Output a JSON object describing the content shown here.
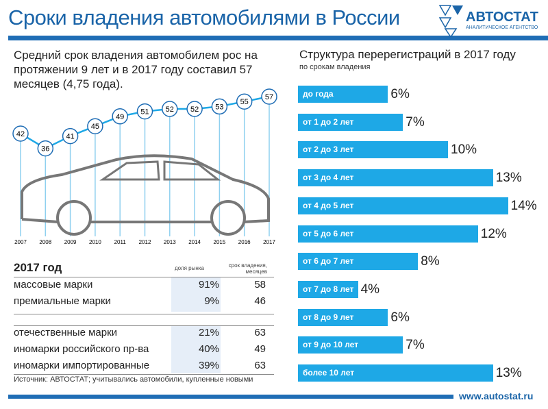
{
  "header": {
    "title": "Сроки владения автомобилями в России",
    "logo_name": "АВТОСТАТ",
    "logo_sub": "АНАЛИТИЧЕСКОЕ АГЕНТСТВО",
    "url": "www.autostat.ru"
  },
  "colors": {
    "brand": "#1f6db5",
    "bar": "#1ea8e6"
  },
  "chart_data": [
    {
      "type": "line",
      "title": "Средний срок владения автомобилем рос на протяжении 9 лет и в 2017 году составил 57 месяцев (4,75 года).",
      "x": [
        "2007",
        "2008",
        "2009",
        "2010",
        "2011",
        "2012",
        "2013",
        "2014",
        "2015",
        "2016",
        "2017"
      ],
      "values": [
        42,
        36,
        41,
        45,
        49,
        51,
        52,
        52,
        53,
        55,
        57
      ]
    },
    {
      "type": "bar",
      "orientation": "horizontal",
      "title": "Структура перерегистраций в 2017 году",
      "subtitle": "по срокам владения",
      "categories": [
        "до года",
        "от 1 до 2 лет",
        "от 2 до 3 лет",
        "от 3 до 4 лет",
        "от 4 до 5 лет",
        "от 5 до 6 лет",
        "от 6 до 7 лет",
        "от 7 до 8 лет",
        "от 8 до 9 лет",
        "от 9 до 10 лет",
        "более 10 лет"
      ],
      "values": [
        6,
        7,
        10,
        13,
        14,
        12,
        8,
        4,
        6,
        7,
        13
      ],
      "labels": [
        "6%",
        "7%",
        "10%",
        "13%",
        "14%",
        "12%",
        "8%",
        "4%",
        "6%",
        "7%",
        "13%"
      ]
    }
  ],
  "table": {
    "title": "2017 год",
    "col1": "доля рынка",
    "col2a": "срок владения,",
    "col2b": "месяцев",
    "rows": [
      [
        "массовые марки",
        "91%",
        "58"
      ],
      [
        "премиальные марки",
        "9%",
        "46"
      ],
      [
        "отечественные марки",
        "21%",
        "63"
      ],
      [
        "иномарки российского пр-ва",
        "40%",
        "49"
      ],
      [
        "иномарки импортированные",
        "39%",
        "63"
      ]
    ]
  },
  "source": "Источник: АВТОСТАТ; учитывались автомобили, купленные новыми"
}
